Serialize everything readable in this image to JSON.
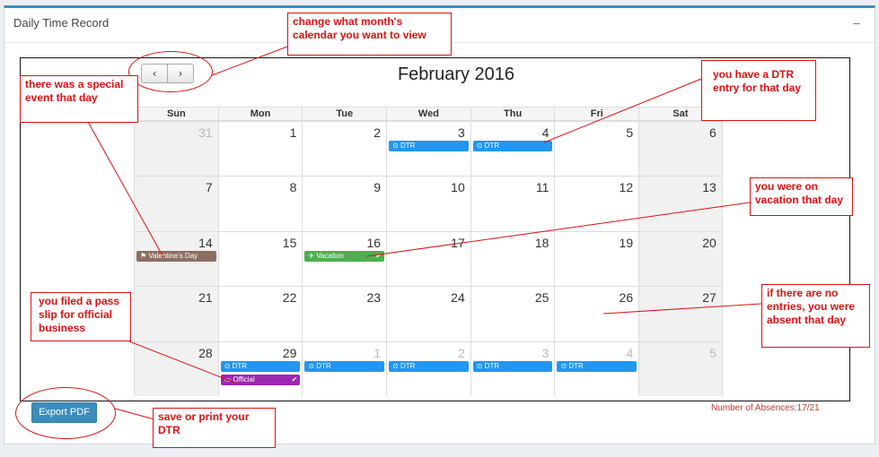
{
  "panel": {
    "title": "Daily Time Record",
    "minimize_label": "–"
  },
  "nav": {
    "prev_label": "‹",
    "next_label": "›"
  },
  "calendar": {
    "month_title": "February 2016",
    "weekdays": [
      "Sun",
      "Mon",
      "Tue",
      "Wed",
      "Thu",
      "Fri",
      "Sat"
    ],
    "weeks": [
      [
        {
          "num": "31",
          "other": true
        },
        {
          "num": "1"
        },
        {
          "num": "2"
        },
        {
          "num": "3",
          "events": [
            {
              "label": "⊙ DTR",
              "type": "dtr"
            }
          ]
        },
        {
          "num": "4",
          "events": [
            {
              "label": "⊙ DTR",
              "type": "dtr"
            }
          ]
        },
        {
          "num": "5"
        },
        {
          "num": "6"
        }
      ],
      [
        {
          "num": "7"
        },
        {
          "num": "8"
        },
        {
          "num": "9"
        },
        {
          "num": "10"
        },
        {
          "num": "11"
        },
        {
          "num": "12"
        },
        {
          "num": "13"
        }
      ],
      [
        {
          "num": "14",
          "events": [
            {
              "label": "⚑ Valentine's Day",
              "type": "holiday"
            }
          ]
        },
        {
          "num": "15"
        },
        {
          "num": "16",
          "events": [
            {
              "label": "✈ Vacation",
              "type": "vacation",
              "check": true
            }
          ]
        },
        {
          "num": "17"
        },
        {
          "num": "18"
        },
        {
          "num": "19"
        },
        {
          "num": "20"
        }
      ],
      [
        {
          "num": "21"
        },
        {
          "num": "22"
        },
        {
          "num": "23"
        },
        {
          "num": "24"
        },
        {
          "num": "25"
        },
        {
          "num": "26"
        },
        {
          "num": "27"
        }
      ],
      [
        {
          "num": "28"
        },
        {
          "num": "29",
          "events": [
            {
              "label": "⊙ DTR",
              "type": "dtr"
            },
            {
              "label": "▭ Official",
              "type": "official",
              "check": true
            }
          ]
        },
        {
          "num": "1",
          "other": true,
          "events": [
            {
              "label": "⊙ DTR",
              "type": "dtr"
            }
          ]
        },
        {
          "num": "2",
          "other": true,
          "events": [
            {
              "label": "⊙ DTR",
              "type": "dtr"
            }
          ]
        },
        {
          "num": "3",
          "other": true,
          "events": [
            {
              "label": "⊙ DTR",
              "type": "dtr"
            }
          ]
        },
        {
          "num": "4",
          "other": true,
          "events": [
            {
              "label": "⊙ DTR",
              "type": "dtr"
            }
          ]
        },
        {
          "num": "5",
          "other": true
        }
      ]
    ]
  },
  "event_colors": {
    "dtr": "#2196f3",
    "holiday": "#8d6e63",
    "vacation": "#4caf50",
    "official": "#9c27b0"
  },
  "check_icon": "✔",
  "export_button": "Export PDF",
  "absences": "Number of Absences:17/21",
  "annotations": {
    "month_nav": "change what month's calendar you want to view",
    "special_event": "there was a special event that day",
    "dtr_entry": "you have a DTR entry for that day",
    "vacation": "you were on vacation that day",
    "absent": "if there are no entries, you were absent that day",
    "pass_slip": "you filed a pass slip for official business",
    "export": "save or print your DTR"
  }
}
